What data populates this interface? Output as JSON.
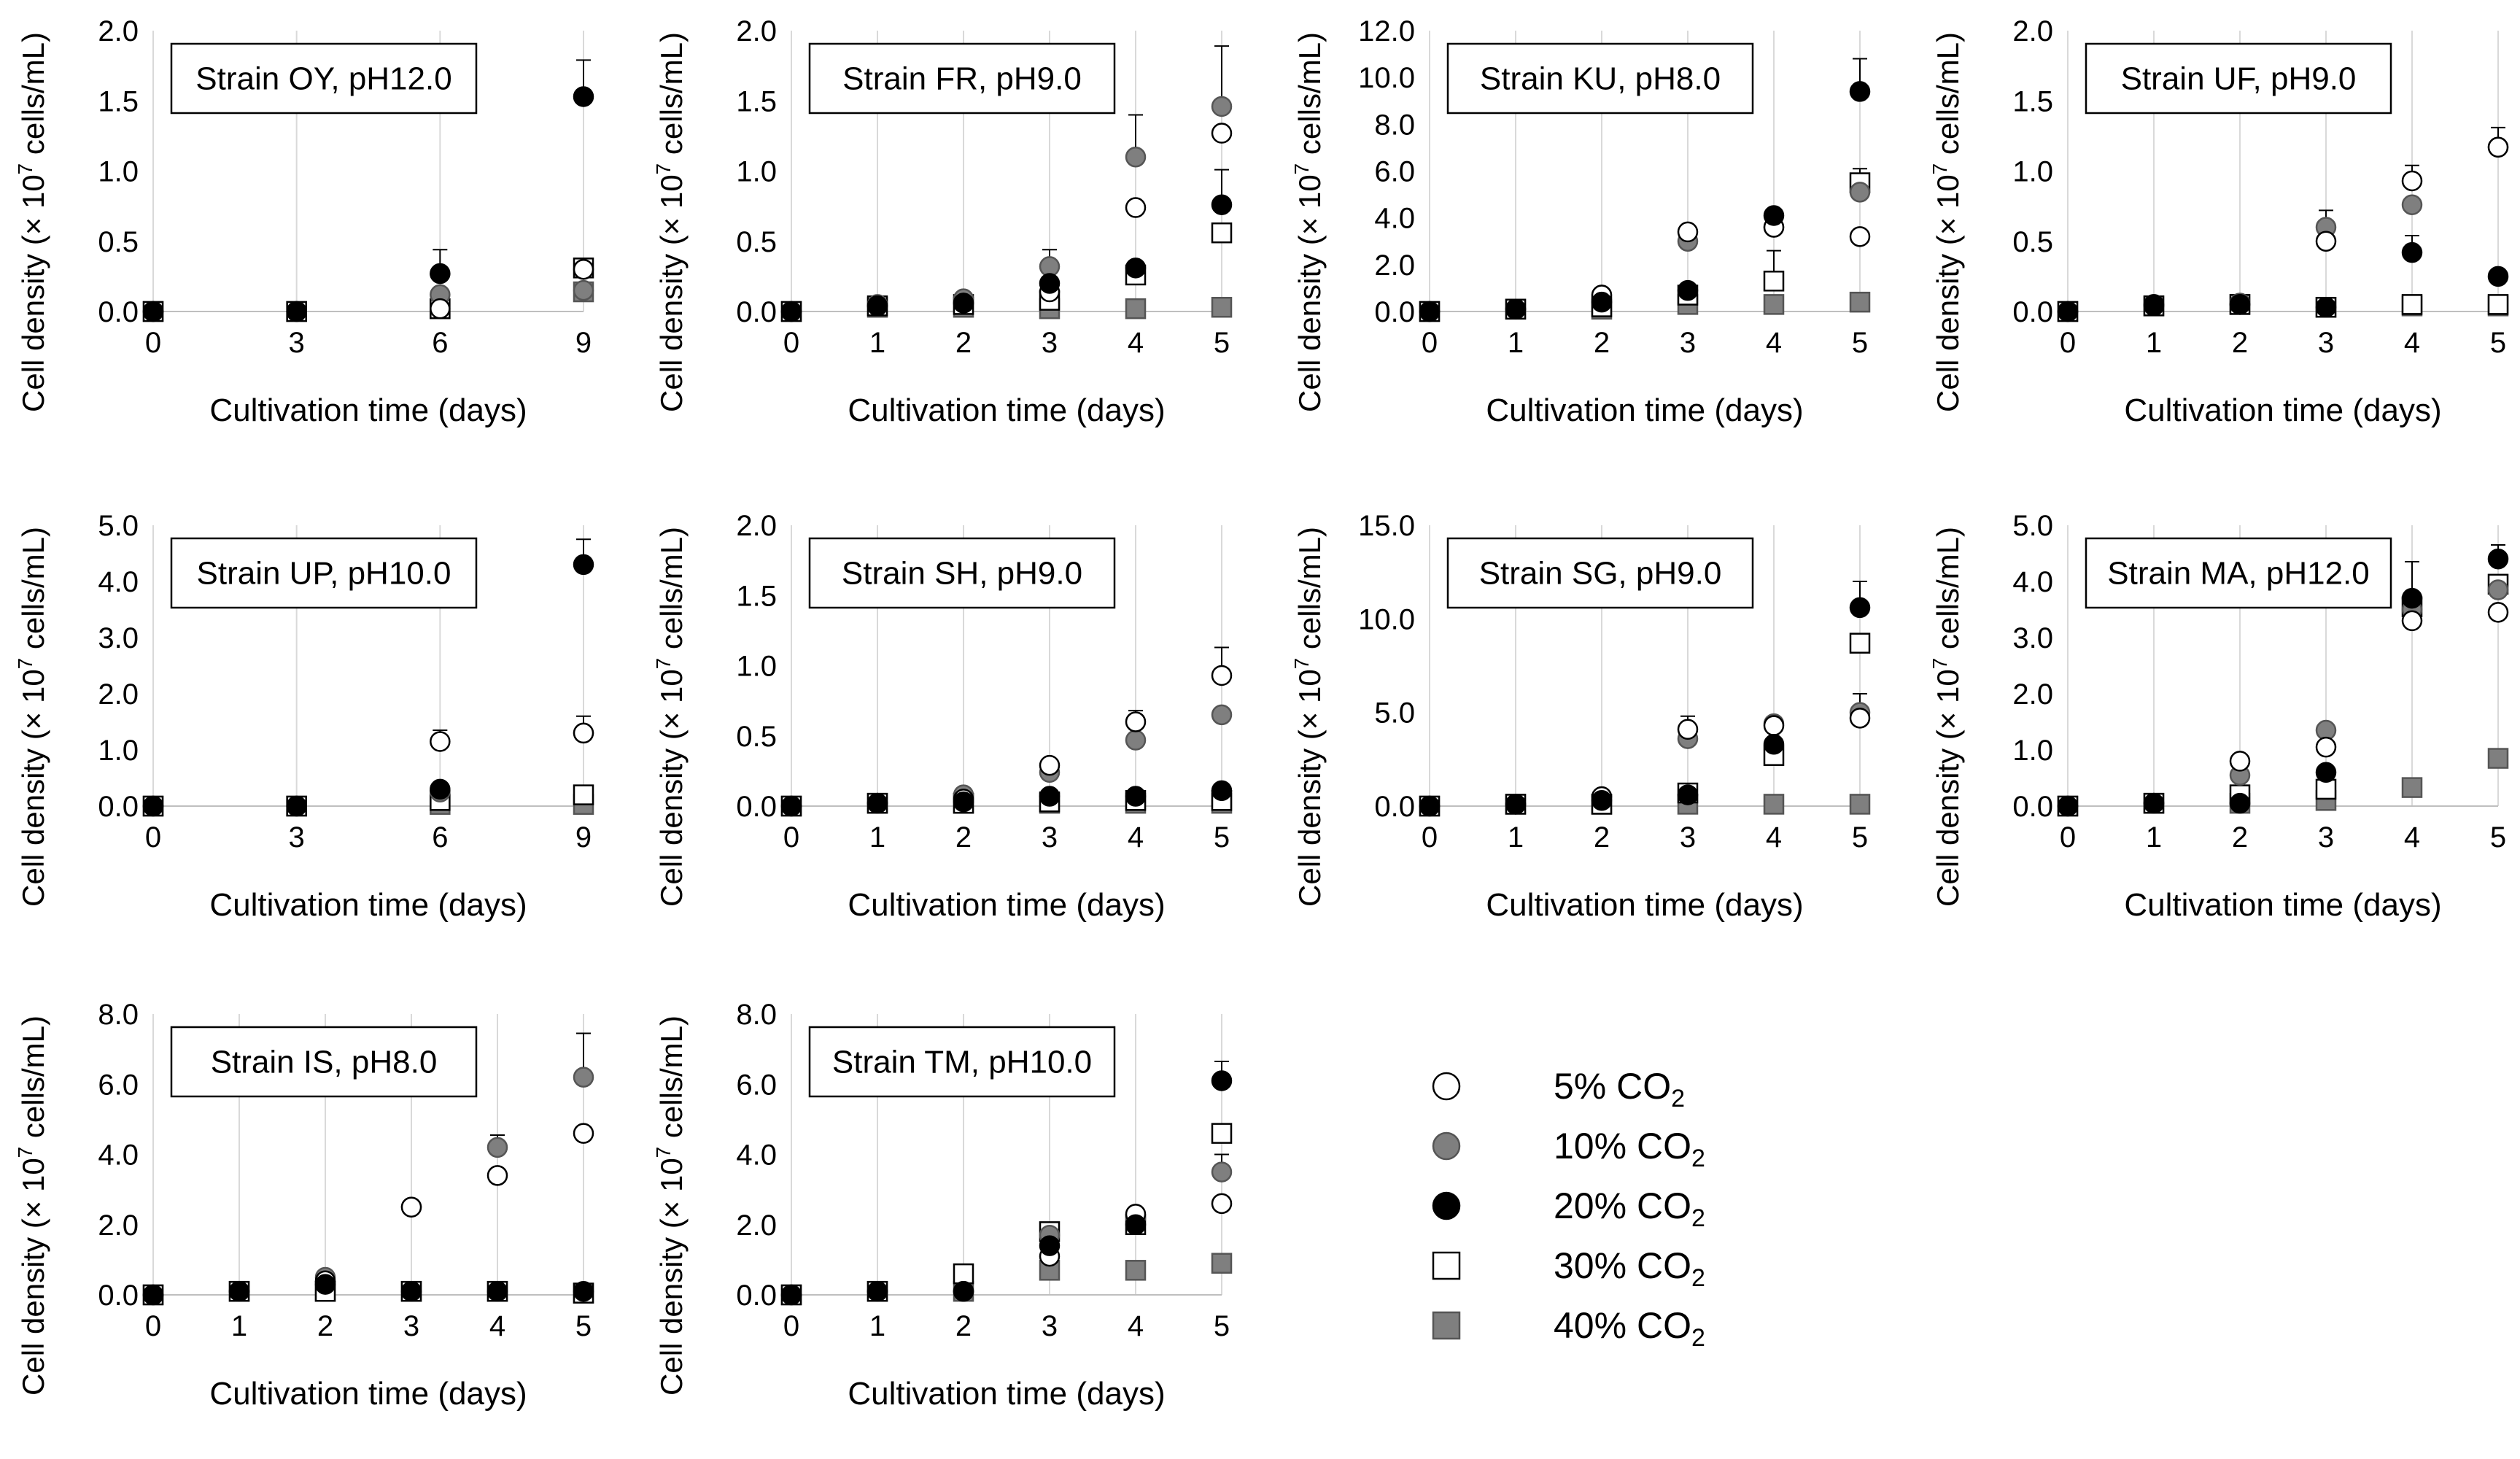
{
  "y_axis_label": "Cell density (× 10",
  "y_axis_label_sup": "7",
  "y_axis_label_tail": " cells/mL)",
  "x_axis_label": "Cultivation  time (days)",
  "series": [
    {
      "key": "s5",
      "label": "5% CO",
      "subscript": "2",
      "marker": "circle",
      "fill": "#ffffff",
      "stroke": "#000000"
    },
    {
      "key": "s10",
      "label": "10% CO",
      "subscript": "2",
      "marker": "circle",
      "fill": "#7f7f7f",
      "stroke": "#555555"
    },
    {
      "key": "s20",
      "label": "20% CO",
      "subscript": "2",
      "marker": "circle",
      "fill": "#000000",
      "stroke": "#000000"
    },
    {
      "key": "s30",
      "label": "30% CO",
      "subscript": "2",
      "marker": "square",
      "fill": "#ffffff",
      "stroke": "#000000"
    },
    {
      "key": "s40",
      "label": "40% CO",
      "subscript": "2",
      "marker": "square",
      "fill": "#7f7f7f",
      "stroke": "#555555"
    }
  ],
  "chart_data": [
    {
      "type": "scatter",
      "title": "Strain OY, pH12.0",
      "x": [
        0,
        3,
        6,
        9
      ],
      "xticks": [
        "0",
        "3",
        "6",
        "9"
      ],
      "ylim": [
        0,
        2.0
      ],
      "yticks": [
        "0.0",
        "0.5",
        "1.0",
        "1.5",
        "2.0"
      ],
      "series": {
        "s5": [
          0,
          0,
          0.02,
          0.3
        ],
        "s10": [
          0,
          0,
          0.12,
          0.15
        ],
        "s20": [
          0,
          0,
          0.27,
          1.53
        ],
        "s30": [
          0,
          0,
          0.02,
          0.31
        ],
        "s40": [
          0,
          0,
          0.02,
          0.14
        ]
      },
      "errors": [
        {
          "s": "s20",
          "i": 2,
          "e": 0.17
        },
        {
          "s": "s20",
          "i": 3,
          "e": 0.26
        }
      ]
    },
    {
      "type": "scatter",
      "title": "Strain FR, pH9.0",
      "x": [
        0,
        1,
        2,
        3,
        4,
        5
      ],
      "xticks": [
        "0",
        "1",
        "2",
        "3",
        "4",
        "5"
      ],
      "ylim": [
        0,
        2.0
      ],
      "yticks": [
        "0.0",
        "0.5",
        "1.0",
        "1.5",
        "2.0"
      ],
      "series": {
        "s5": [
          0,
          0.04,
          0.06,
          0.14,
          0.74,
          1.27
        ],
        "s10": [
          0,
          0.05,
          0.09,
          0.32,
          1.1,
          1.46
        ],
        "s20": [
          0,
          0.04,
          0.06,
          0.2,
          0.31,
          0.76
        ],
        "s30": [
          0,
          0.04,
          0.05,
          0.08,
          0.26,
          0.56
        ],
        "s40": [
          0,
          0.03,
          0.03,
          0.02,
          0.02,
          0.03
        ]
      },
      "errors": [
        {
          "s": "s10",
          "i": 3,
          "e": 0.12
        },
        {
          "s": "s10",
          "i": 4,
          "e": 0.3
        },
        {
          "s": "s10",
          "i": 5,
          "e": 0.43
        },
        {
          "s": "s20",
          "i": 5,
          "e": 0.25
        }
      ]
    },
    {
      "type": "scatter",
      "title": "Strain KU, pH8.0",
      "x": [
        0,
        1,
        2,
        3,
        4,
        5
      ],
      "xticks": [
        "0",
        "1",
        "2",
        "3",
        "4",
        "5"
      ],
      "ylim": [
        0,
        12.0
      ],
      "yticks": [
        "0.0",
        "2.0",
        "4.0",
        "6.0",
        "8.0",
        "10.0",
        "12.0"
      ],
      "series": {
        "s5": [
          0,
          0.1,
          0.7,
          3.4,
          3.6,
          3.2
        ],
        "s10": [
          0,
          0.1,
          0.7,
          3.0,
          3.6,
          5.1
        ],
        "s20": [
          0,
          0.1,
          0.4,
          0.9,
          4.1,
          9.4
        ],
        "s30": [
          0,
          0.1,
          0.2,
          0.7,
          1.3,
          5.5
        ],
        "s40": [
          0,
          0.1,
          0.1,
          0.3,
          0.3,
          0.4
        ]
      },
      "errors": [
        {
          "s": "s20",
          "i": 5,
          "e": 1.4
        },
        {
          "s": "s30",
          "i": 4,
          "e": 1.3
        },
        {
          "s": "s30",
          "i": 5,
          "e": 0.6
        }
      ]
    },
    {
      "type": "scatter",
      "title": "Strain UF, pH9.0",
      "x": [
        0,
        1,
        2,
        3,
        4,
        5
      ],
      "xticks": [
        "0",
        "1",
        "2",
        "3",
        "4",
        "5"
      ],
      "ylim": [
        0,
        2.0
      ],
      "yticks": [
        "0.0",
        "0.5",
        "1.0",
        "1.5",
        "2.0"
      ],
      "series": {
        "s5": [
          0,
          0.05,
          0.05,
          0.5,
          0.93,
          1.17
        ],
        "s10": [
          0,
          0.05,
          0.06,
          0.6,
          0.76,
          1.17
        ],
        "s20": [
          0,
          0.04,
          0.05,
          0.03,
          0.42,
          0.25
        ],
        "s30": [
          0,
          0.04,
          0.05,
          0.03,
          0.05,
          0.05
        ],
        "s40": [
          0,
          0.04,
          0.05,
          0.03,
          0.04,
          0.04
        ]
      },
      "errors": [
        {
          "s": "s5",
          "i": 3,
          "e": 0.22
        },
        {
          "s": "s5",
          "i": 4,
          "e": 0.11
        },
        {
          "s": "s10",
          "i": 5,
          "e": 0.14
        },
        {
          "s": "s20",
          "i": 4,
          "e": 0.12
        }
      ]
    },
    {
      "type": "scatter",
      "title": "Strain UP, pH10.0",
      "x": [
        0,
        3,
        6,
        9
      ],
      "xticks": [
        "0",
        "3",
        "6",
        "9"
      ],
      "ylim": [
        0,
        5.0
      ],
      "yticks": [
        "0.0",
        "1.0",
        "2.0",
        "3.0",
        "4.0",
        "5.0"
      ],
      "series": {
        "s5": [
          0,
          0,
          1.15,
          1.3
        ],
        "s10": [
          0,
          0,
          0.25,
          1.3
        ],
        "s20": [
          0,
          0,
          0.3,
          4.3
        ],
        "s30": [
          0,
          0,
          0.1,
          0.2
        ],
        "s40": [
          0,
          0,
          0.03,
          0.03
        ]
      },
      "errors": [
        {
          "s": "s5",
          "i": 2,
          "e": 0.2
        },
        {
          "s": "s5",
          "i": 3,
          "e": 0.3
        },
        {
          "s": "s20",
          "i": 3,
          "e": 0.45
        }
      ]
    },
    {
      "type": "scatter",
      "title": "Strain SH, pH9.0",
      "x": [
        0,
        1,
        2,
        3,
        4,
        5
      ],
      "xticks": [
        "0",
        "1",
        "2",
        "3",
        "4",
        "5"
      ],
      "ylim": [
        0,
        2.0
      ],
      "yticks": [
        "0.0",
        "0.5",
        "1.0",
        "1.5",
        "2.0"
      ],
      "series": {
        "s5": [
          0,
          0.02,
          0.05,
          0.29,
          0.6,
          0.93
        ],
        "s10": [
          0,
          0.02,
          0.08,
          0.24,
          0.47,
          0.65
        ],
        "s20": [
          0,
          0.02,
          0.03,
          0.07,
          0.07,
          0.11
        ],
        "s30": [
          0,
          0.02,
          0.02,
          0.03,
          0.04,
          0.04
        ],
        "s40": [
          0,
          0.02,
          0.02,
          0.02,
          0.02,
          0.02
        ]
      },
      "errors": [
        {
          "s": "s5",
          "i": 4,
          "e": 0.08
        },
        {
          "s": "s5",
          "i": 5,
          "e": 0.2
        }
      ]
    },
    {
      "type": "scatter",
      "title": "Strain SG, pH9.0",
      "x": [
        0,
        1,
        2,
        3,
        4,
        5
      ],
      "xticks": [
        "0",
        "1",
        "2",
        "3",
        "4",
        "5"
      ],
      "ylim": [
        0,
        15.0
      ],
      "yticks": [
        "0.0",
        "5.0",
        "10.0",
        "15.0"
      ],
      "series": {
        "s5": [
          0,
          0.1,
          0.5,
          4.1,
          4.3,
          4.7
        ],
        "s10": [
          0,
          0.1,
          0.5,
          3.6,
          4.4,
          5.0
        ],
        "s20": [
          0,
          0.1,
          0.3,
          0.6,
          3.3,
          10.6
        ],
        "s30": [
          0,
          0.1,
          0.1,
          0.7,
          2.7,
          8.7
        ],
        "s40": [
          0,
          0.1,
          0.1,
          0.1,
          0.1,
          0.1
        ]
      },
      "errors": [
        {
          "s": "s5",
          "i": 3,
          "e": 0.7
        },
        {
          "s": "s20",
          "i": 5,
          "e": 1.4
        },
        {
          "s": "s10",
          "i": 5,
          "e": 1.0
        }
      ]
    },
    {
      "type": "scatter",
      "title": "Strain MA, pH12.0",
      "x": [
        0,
        1,
        2,
        3,
        4,
        5
      ],
      "xticks": [
        "0",
        "1",
        "2",
        "3",
        "4",
        "5"
      ],
      "ylim": [
        0,
        5.0
      ],
      "yticks": [
        "0.0",
        "1.0",
        "2.0",
        "3.0",
        "4.0",
        "5.0"
      ],
      "series": {
        "s5": [
          0,
          0.05,
          0.8,
          1.05,
          3.3,
          3.45
        ],
        "s10": [
          0,
          0.05,
          0.55,
          1.35,
          3.5,
          3.85
        ],
        "s20": [
          0,
          0.05,
          0.05,
          0.6,
          3.7,
          4.4
        ],
        "s30": [
          0,
          0.05,
          0.2,
          0.3,
          3.55,
          3.95
        ],
        "s40": [
          0,
          0.05,
          0.05,
          0.1,
          0.33,
          0.85
        ]
      },
      "errors": [
        {
          "s": "s5",
          "i": 4,
          "e": 1.05
        },
        {
          "s": "s20",
          "i": 5,
          "e": 0.25
        }
      ]
    },
    {
      "type": "scatter",
      "title": "Strain IS, pH8.0",
      "x": [
        0,
        1,
        2,
        3,
        4,
        5
      ],
      "xticks": [
        "0",
        "1",
        "2",
        "3",
        "4",
        "5"
      ],
      "ylim": [
        0,
        8.0
      ],
      "yticks": [
        "0.0",
        "2.0",
        "4.0",
        "6.0",
        "8.0"
      ],
      "series": {
        "s5": [
          0,
          0.1,
          0.4,
          2.5,
          3.4,
          4.6
        ],
        "s10": [
          0,
          0.1,
          0.5,
          2.5,
          4.2,
          6.2
        ],
        "s20": [
          0,
          0.1,
          0.3,
          0.1,
          0.1,
          0.1
        ],
        "s30": [
          0,
          0.1,
          0.1,
          0.1,
          0.1,
          0.05
        ],
        "s40": [
          0,
          0.1,
          0.1,
          0.1,
          0.1,
          0.05
        ]
      },
      "errors": [
        {
          "s": "s10",
          "i": 4,
          "e": 0.35
        },
        {
          "s": "s10",
          "i": 5,
          "e": 1.25
        }
      ]
    },
    {
      "type": "scatter",
      "title": "Strain TM, pH10.0",
      "x": [
        0,
        1,
        2,
        3,
        4,
        5
      ],
      "xticks": [
        "0",
        "1",
        "2",
        "3",
        "4",
        "5"
      ],
      "ylim": [
        0,
        8.0
      ],
      "yticks": [
        "0.0",
        "2.0",
        "4.0",
        "6.0",
        "8.0"
      ],
      "series": {
        "s5": [
          0,
          0.1,
          0.1,
          1.1,
          2.3,
          2.6
        ],
        "s10": [
          0,
          0.1,
          0.1,
          1.7,
          2.2,
          3.5
        ],
        "s20": [
          0,
          0.1,
          0.1,
          1.4,
          2.0,
          6.1
        ],
        "s30": [
          0,
          0.1,
          0.6,
          1.8,
          2.0,
          4.6
        ],
        "s40": [
          0,
          0.1,
          0.1,
          0.7,
          0.7,
          0.9
        ]
      },
      "errors": [
        {
          "s": "s20",
          "i": 5,
          "e": 0.55
        },
        {
          "s": "s10",
          "i": 5,
          "e": 0.5
        }
      ]
    }
  ]
}
